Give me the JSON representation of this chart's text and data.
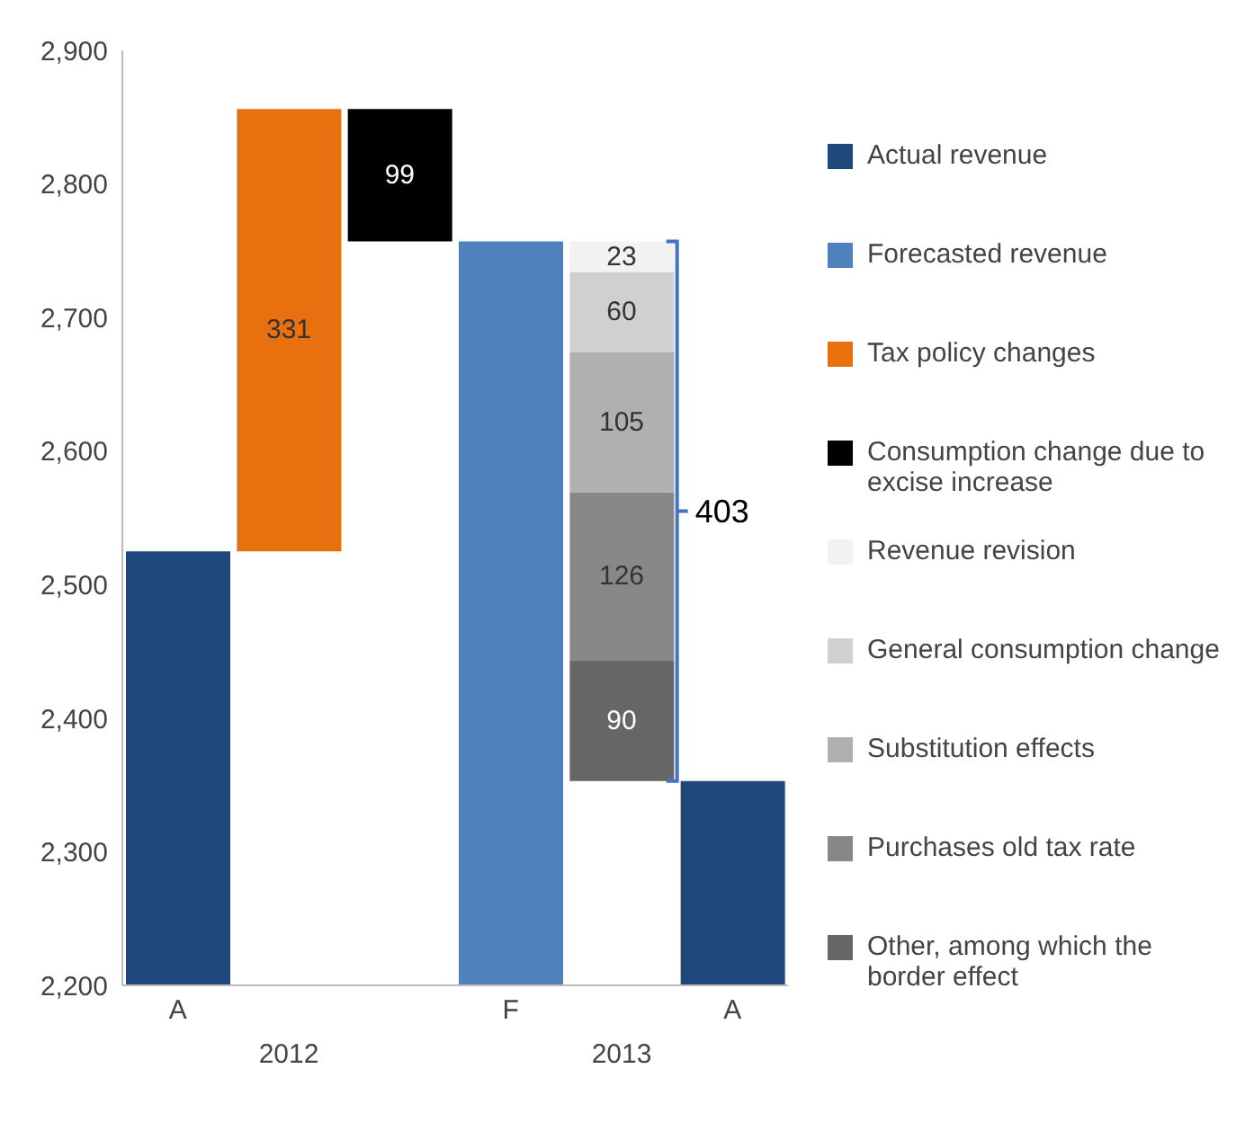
{
  "chart_data": {
    "type": "bar",
    "categories": [
      "A",
      null,
      null,
      "F",
      null,
      "A"
    ],
    "series": [
      {
        "name": "Actual revenue",
        "color": "#1f497d",
        "values": [
          2525,
          null,
          null,
          null,
          null,
          2353
        ]
      },
      {
        "name": "Forecasted revenue",
        "color": "#4f81bd",
        "values": [
          null,
          null,
          null,
          2757,
          null,
          null
        ]
      },
      {
        "name": "Tax policy changes",
        "color": "#e8700f",
        "values": [
          null,
          331,
          null,
          null,
          null,
          null
        ],
        "base": [
          null,
          2525,
          null,
          null,
          null,
          null
        ],
        "value_labels": [
          null,
          "331",
          null,
          null,
          null,
          null
        ]
      },
      {
        "name": "Consumption change due to excise increase",
        "color": "#000000",
        "values": [
          null,
          null,
          99,
          null,
          null,
          null
        ],
        "base": [
          null,
          null,
          2757,
          null,
          null,
          null
        ],
        "value_labels": [
          null,
          null,
          "99",
          null,
          null,
          null
        ]
      },
      {
        "name": "Revenue revision",
        "color": "#f2f2f2",
        "values": [
          null,
          null,
          null,
          null,
          23,
          null
        ],
        "base": [
          null,
          null,
          null,
          null,
          2734,
          null
        ],
        "value_labels": [
          null,
          null,
          null,
          null,
          "23",
          null
        ]
      },
      {
        "name": "General consumption change",
        "color": "#d0d0d0",
        "values": [
          null,
          null,
          null,
          null,
          60,
          null
        ],
        "base": [
          null,
          null,
          null,
          null,
          2674,
          null
        ],
        "value_labels": [
          null,
          null,
          null,
          null,
          "60",
          null
        ]
      },
      {
        "name": "Substitution effects",
        "color": "#b0b0b0",
        "values": [
          null,
          null,
          null,
          null,
          105,
          null
        ],
        "base": [
          null,
          null,
          null,
          null,
          2569,
          null
        ],
        "value_labels": [
          null,
          null,
          null,
          null,
          "105",
          null
        ]
      },
      {
        "name": "Purchases old tax rate",
        "color": "#888888",
        "values": [
          null,
          null,
          null,
          null,
          126,
          null
        ],
        "base": [
          null,
          null,
          null,
          null,
          2443,
          null
        ],
        "value_labels": [
          null,
          null,
          null,
          null,
          "126",
          null
        ]
      },
      {
        "name": "Other, among which the border effect",
        "color": "#666666",
        "values": [
          null,
          null,
          null,
          null,
          90,
          null
        ],
        "base": [
          null,
          null,
          null,
          null,
          2353,
          null
        ],
        "value_labels": [
          null,
          null,
          null,
          null,
          "90",
          null
        ]
      }
    ],
    "ylim": [
      2200,
      2900
    ],
    "yticks": [
      {
        "value": 2200,
        "label": "2,200"
      },
      {
        "value": 2300,
        "label": "2,300"
      },
      {
        "value": 2400,
        "label": "2,400"
      },
      {
        "value": 2500,
        "label": "2,500"
      },
      {
        "value": 2600,
        "label": "2,600"
      },
      {
        "value": 2700,
        "label": "2,700"
      },
      {
        "value": 2800,
        "label": "2,800"
      },
      {
        "value": 2900,
        "label": "2,900"
      }
    ],
    "annotations": [
      "403",
      "2012",
      "2013"
    ],
    "legend": "right",
    "grid": false
  }
}
